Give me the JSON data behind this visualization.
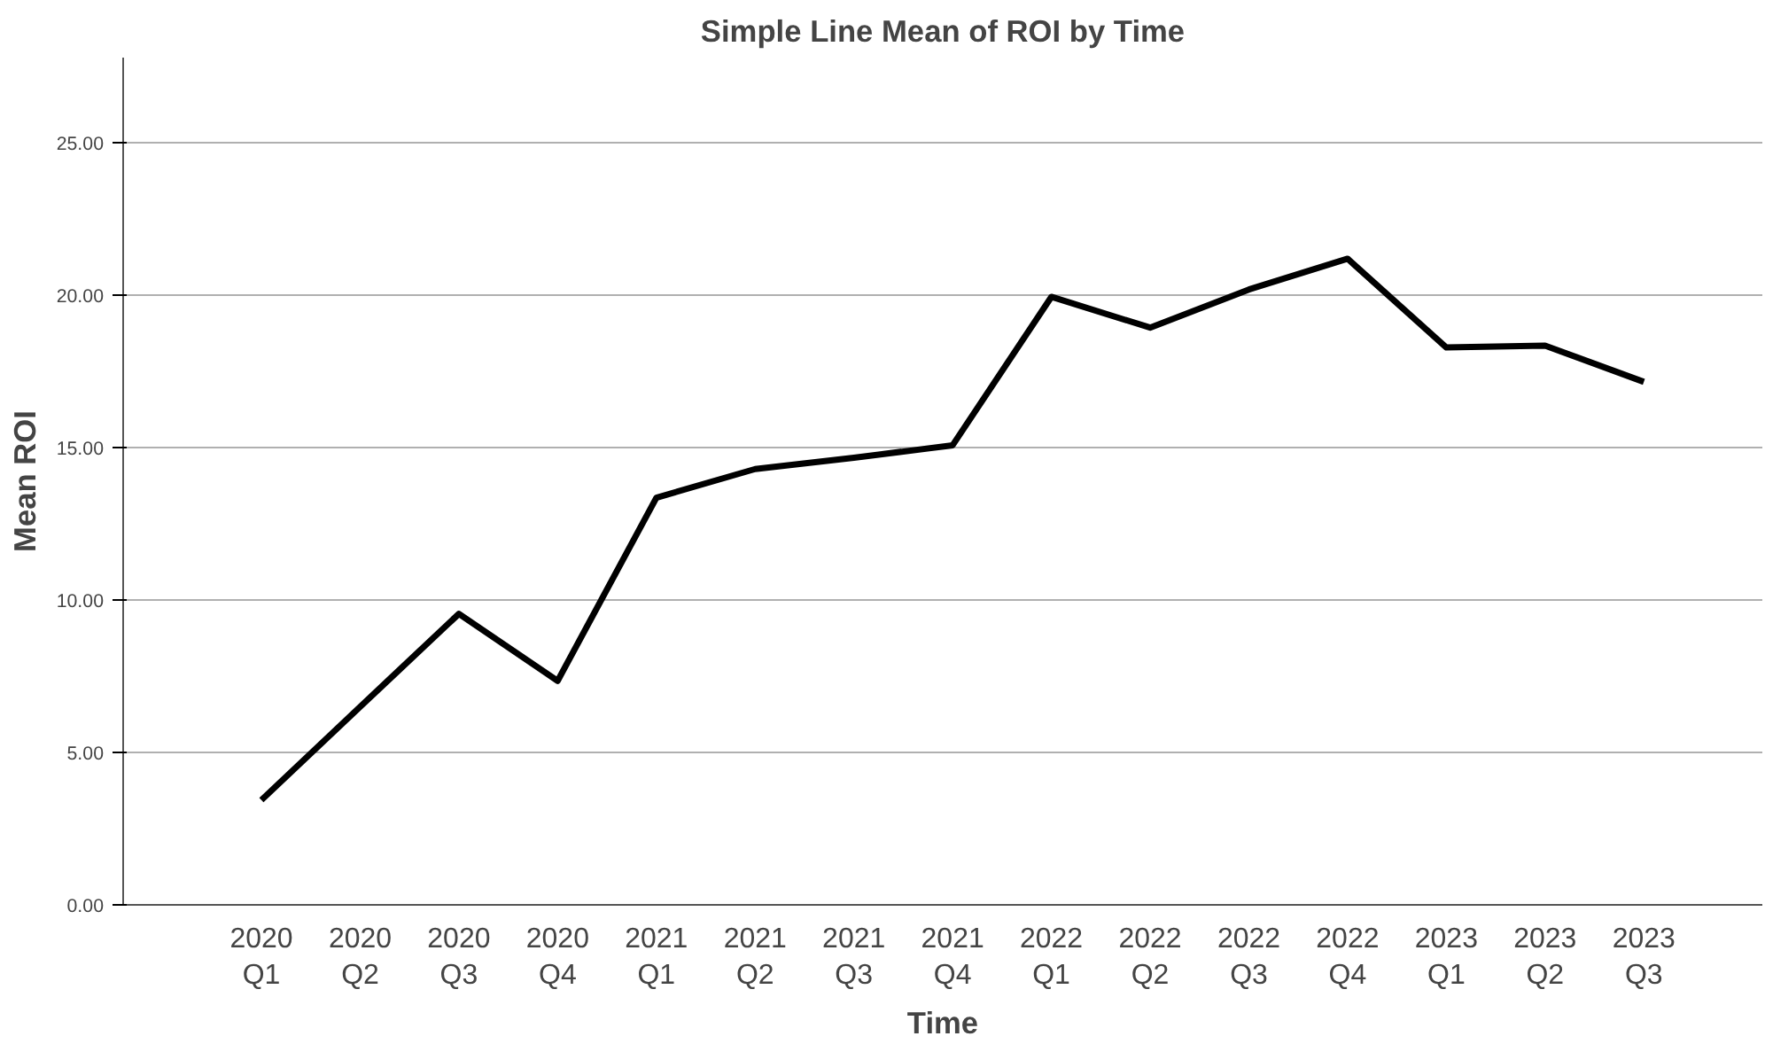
{
  "chart_data": {
    "type": "line",
    "title": "Simple Line Mean of ROI by Time",
    "xlabel": "Time",
    "ylabel": "Mean ROI",
    "categories": [
      "2020\nQ1",
      "2020\nQ2",
      "2020\nQ3",
      "2020\nQ4",
      "2021\nQ1",
      "2021\nQ2",
      "2021\nQ3",
      "2021\nQ4",
      "2022\nQ1",
      "2022\nQ2",
      "2022\nQ3",
      "2022\nQ4",
      "2023\nQ1",
      "2023\nQ2",
      "2023\nQ3"
    ],
    "series": [
      {
        "color": "#000000",
        "values": [
          3.44,
          6.5,
          9.55,
          7.35,
          13.36,
          14.3,
          14.67,
          15.08,
          19.95,
          18.94,
          20.19,
          21.2,
          18.29,
          18.35,
          17.16
        ]
      }
    ],
    "ylim": [
      0,
      27.8
    ],
    "yticks": [
      {
        "value": 0,
        "label": "0.00"
      },
      {
        "value": 5,
        "label": "5.00"
      },
      {
        "value": 10,
        "label": "10.00"
      },
      {
        "value": 15,
        "label": "15.00"
      },
      {
        "value": 20,
        "label": "20.00"
      },
      {
        "value": 25,
        "label": "25.00"
      }
    ],
    "grid": "y",
    "line_style": "solid",
    "marker": "none"
  }
}
